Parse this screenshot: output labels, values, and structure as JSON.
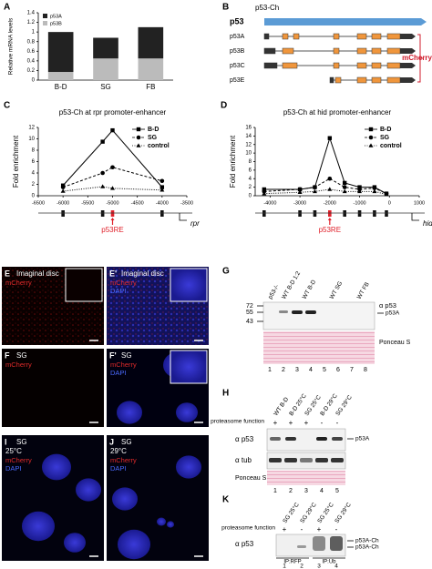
{
  "chart_data": [
    {
      "type": "stacked_bar",
      "panel": "A",
      "ylabel": "Relative mRNA levels",
      "categories": [
        "B-D",
        "SG",
        "FB"
      ],
      "series": [
        {
          "name": "p53A",
          "color": "#222222",
          "values": [
            0.83,
            0.43,
            0.65
          ]
        },
        {
          "name": "p53B",
          "color": "#bbbbbb",
          "values": [
            0.17,
            0.45,
            0.45
          ]
        }
      ],
      "ylim": [
        0,
        1.4
      ],
      "yticks": [
        0,
        0.2,
        0.4,
        0.6,
        0.8,
        1,
        1.2,
        1.4
      ]
    },
    {
      "type": "line",
      "panel": "C",
      "title": "p53-Ch at rpr promoter-enhancer",
      "ylabel": "Fold enrichment",
      "x": [
        -6000,
        -5200,
        -5000,
        -4000
      ],
      "series": [
        {
          "name": "B-D",
          "color": "#000000",
          "marker": "square",
          "dash": "solid",
          "values": [
            1.8,
            9.5,
            11.5,
            1.5
          ]
        },
        {
          "name": "SG",
          "color": "#000000",
          "marker": "circle",
          "dash": "dashed",
          "values": [
            1.5,
            4,
            5,
            2.6
          ]
        },
        {
          "name": "control",
          "color": "#000000",
          "marker": "triangle",
          "dash": "dotted",
          "values": [
            0.8,
            1.6,
            1.3,
            1
          ]
        }
      ],
      "xlim": [
        -6500,
        -3500
      ],
      "xticks": [
        -6500,
        -6000,
        -5500,
        -5000,
        -4500,
        -4000,
        -3500
      ],
      "ylim": [
        0,
        12
      ],
      "yticks": [
        0,
        2,
        4,
        6,
        8,
        10,
        12
      ],
      "annotation": {
        "text": "p53RE",
        "x": -5000
      },
      "gene": "rpr"
    },
    {
      "type": "line",
      "panel": "D",
      "title": "p53-Ch at hid promoter-enhancer",
      "ylabel": "Fold enrichment",
      "x": [
        -4200,
        -3000,
        -2500,
        -2000,
        -1500,
        -1000,
        -500,
        -100
      ],
      "series": [
        {
          "name": "B-D",
          "color": "#000000",
          "marker": "square",
          "dash": "solid",
          "values": [
            1.5,
            1.5,
            2,
            13.5,
            3,
            2,
            2,
            0.5
          ]
        },
        {
          "name": "SG",
          "color": "#000000",
          "marker": "circle",
          "dash": "dashed",
          "values": [
            1,
            1.5,
            2,
            4,
            2,
            1.5,
            1.8,
            0.5
          ]
        },
        {
          "name": "control",
          "color": "#000000",
          "marker": "triangle",
          "dash": "dotted",
          "values": [
            0.5,
            0.8,
            1,
            1.5,
            1,
            1,
            1,
            0.3
          ]
        }
      ],
      "xlim": [
        -4500,
        1000
      ],
      "xticks": [
        -4000,
        -3000,
        -2000,
        -1000,
        0,
        1000
      ],
      "ylim": [
        0,
        16
      ],
      "yticks": [
        0,
        2,
        4,
        6,
        8,
        10,
        12,
        14,
        16
      ],
      "annotation": {
        "text": "p53RE",
        "x": -2000
      },
      "gene": "hid"
    }
  ],
  "diagram": {
    "panel": "B",
    "title": "p53-Ch",
    "gene": "p53",
    "isoforms": [
      "p53A",
      "p53B",
      "p53C",
      "p53E"
    ],
    "tag": "mCherry"
  },
  "micrographs": [
    {
      "panel": "E",
      "title": "Imaginal disc",
      "channels": [
        "mCherry"
      ]
    },
    {
      "panel": "E'",
      "title": "Imaginal disc",
      "channels": [
        "mCherry",
        "DAPI"
      ]
    },
    {
      "panel": "F",
      "title": "SG",
      "channels": [
        "mCherry"
      ]
    },
    {
      "panel": "F'",
      "title": "SG",
      "channels": [
        "mCherry",
        "DAPI"
      ]
    },
    {
      "panel": "I",
      "title": "SG",
      "condition": "25°C",
      "channels": [
        "mCherry",
        "DAPI"
      ]
    },
    {
      "panel": "J",
      "title": "SG",
      "condition": "29°C",
      "channels": [
        "mCherry",
        "DAPI"
      ]
    }
  ],
  "blot_g": {
    "panel": "G",
    "markers": [
      72,
      55,
      43
    ],
    "lane_labels": [
      "p53-/-",
      "WT B-D 1:2",
      "WT B-D",
      "WT SG",
      "WT FB"
    ],
    "antibody": "α p53",
    "band": "p53A",
    "stain": "Ponceau S",
    "lane_numbers": [
      1,
      2,
      3,
      4,
      5,
      6,
      7,
      8
    ]
  },
  "blot_h": {
    "panel": "H",
    "lane_labels": [
      "WT B-D",
      "B-D 25°C",
      "SG 25°C",
      "B-D 29°C",
      "SG 29°C"
    ],
    "row_label": "proteasome function",
    "states": [
      "+",
      "+",
      "+",
      "-",
      "-"
    ],
    "antibodies": [
      "α p53",
      "α tub"
    ],
    "band": "p53A",
    "stain": "Ponceau S",
    "lane_numbers": [
      1,
      2,
      3,
      4,
      5
    ]
  },
  "blot_k": {
    "panel": "K",
    "lane_labels": [
      "SG 25°C",
      "SG 29°C",
      "SG 25°C",
      "SG 29°C"
    ],
    "row_label": "proteasome function",
    "states": [
      "+",
      "-",
      "+",
      "-"
    ],
    "antibody": "α p53",
    "bands": [
      "p53A-Ch",
      "p53A-Ch"
    ],
    "ips": [
      "IP:RFP",
      "IP:Ub"
    ],
    "lane_numbers": [
      1,
      2,
      3,
      4
    ]
  }
}
